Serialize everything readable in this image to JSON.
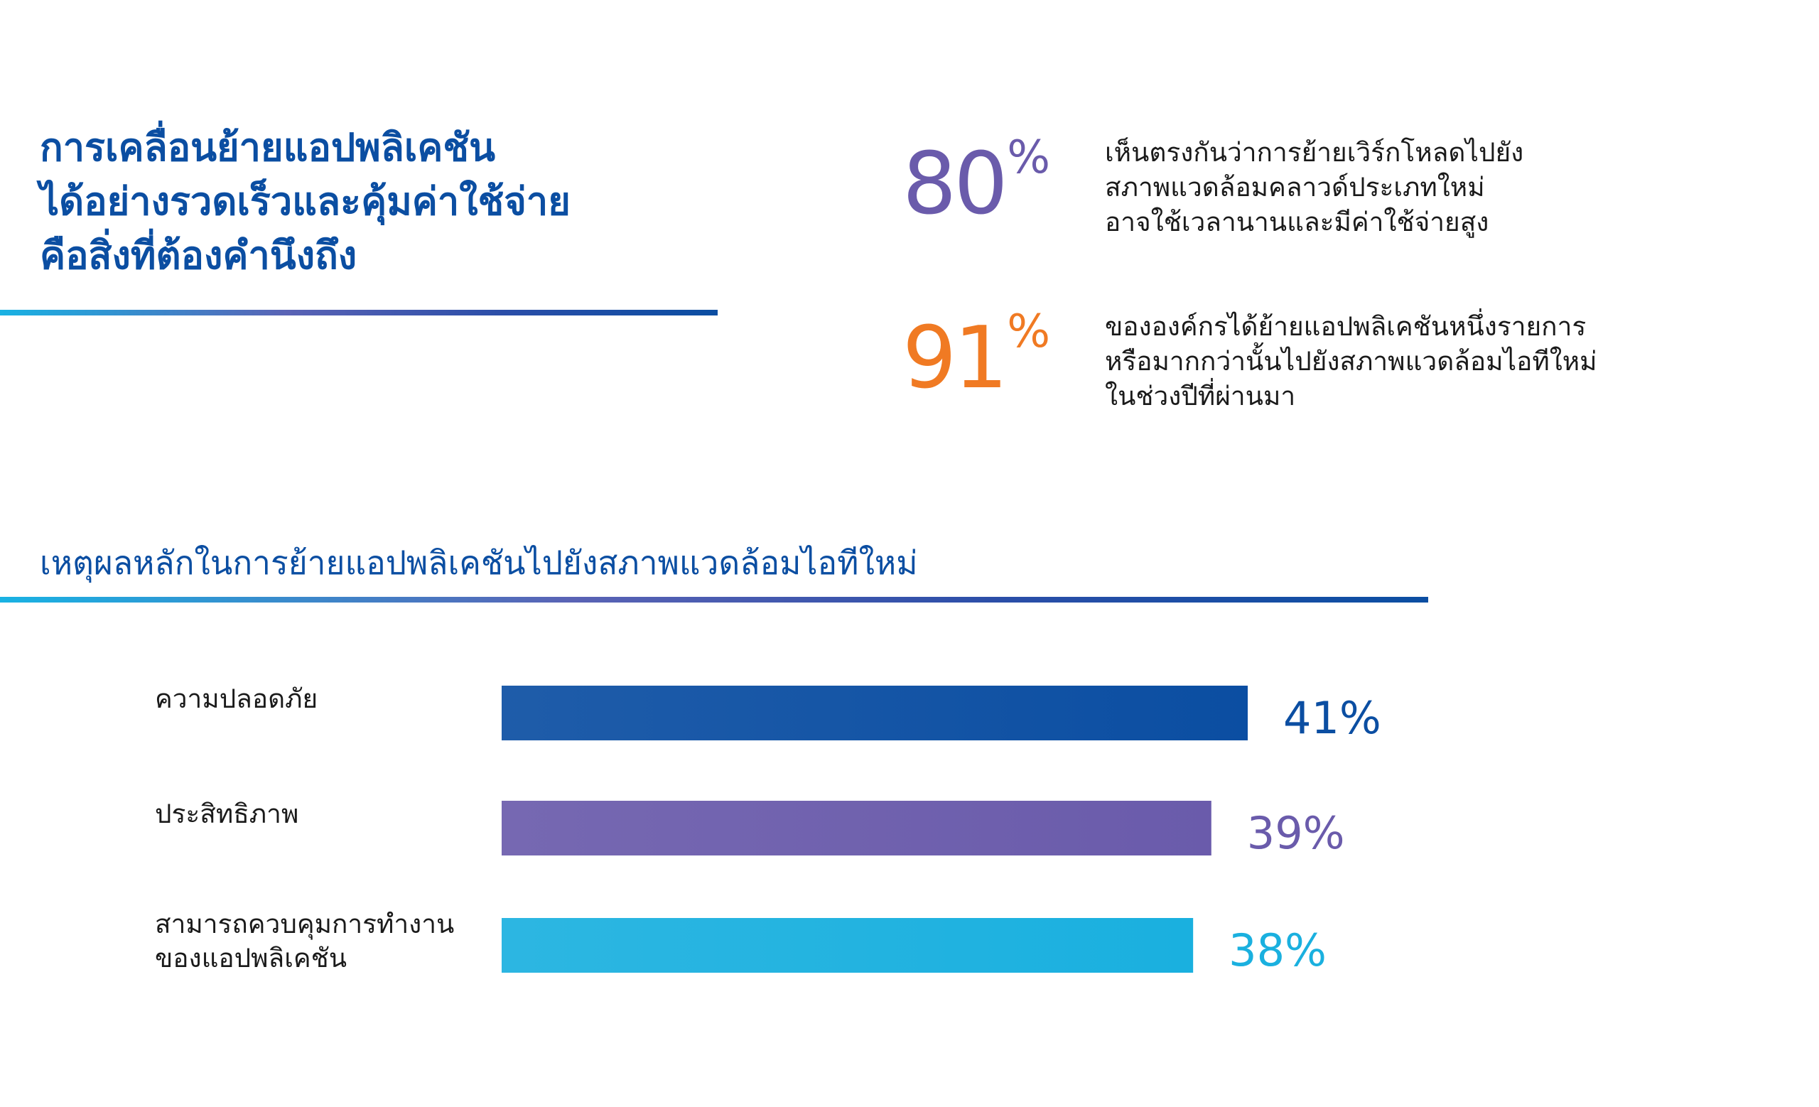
{
  "headline": {
    "lines": [
      "การเคลื่อนย้ายแอปพลิเคชัน",
      "ได้อย่างรวดเร็วและคุ้มค่าใช้จ่าย",
      "คือสิ่งที่ต้องคำนึงถึง"
    ]
  },
  "stats": [
    {
      "number": "80",
      "percent_sign": "%",
      "color": "#6a5bab",
      "description": [
        "เห็นตรงกันว่าการย้ายเวิร์กโหลดไปยัง",
        "สภาพแวดล้อมคลาวด์ประเภทใหม่",
        "อาจใช้เวลานานและมีค่าใช้จ่ายสูง"
      ]
    },
    {
      "number": "91",
      "percent_sign": "%",
      "color": "#f07a23",
      "description": [
        "ขององค์กรได้ย้ายแอปพลิเคชันหนึ่งรายการ",
        "หรือมากกว่านั้นไปยังสภาพแวดล้อมไอทีใหม่",
        "ในช่วงปีที่ผ่านมา"
      ]
    }
  ],
  "subheading": "เหตุผลหลักในการย้ายแอปพลิเคชันไปยังสภาพแวดล้อมไอทีใหม่",
  "colors": {
    "brand_blue": "#0b4ea2",
    "purple": "#6a5bab",
    "orange": "#f07a23",
    "cyan": "#1ab0df"
  },
  "chart_data": {
    "type": "bar",
    "orientation": "horizontal",
    "title": "เหตุผลหลักในการย้ายแอปพลิเคชันไปยังสภาพแวดล้อมไอทีใหม่",
    "categories": [
      [
        "ความปลอดภัย"
      ],
      [
        "ประสิทธิภาพ"
      ],
      [
        "สามารถควบคุมการทำงาน",
        "ของแอปพลิเคชัน"
      ]
    ],
    "values": [
      41,
      39,
      38
    ],
    "value_labels": [
      "41%",
      "39%",
      "38%"
    ],
    "bar_colors": [
      "#0b4ea2",
      "#6a5bab",
      "#1ab0df"
    ],
    "unit": "%",
    "xlim": [
      0,
      47.7
    ],
    "grid": false,
    "legend": "none"
  }
}
